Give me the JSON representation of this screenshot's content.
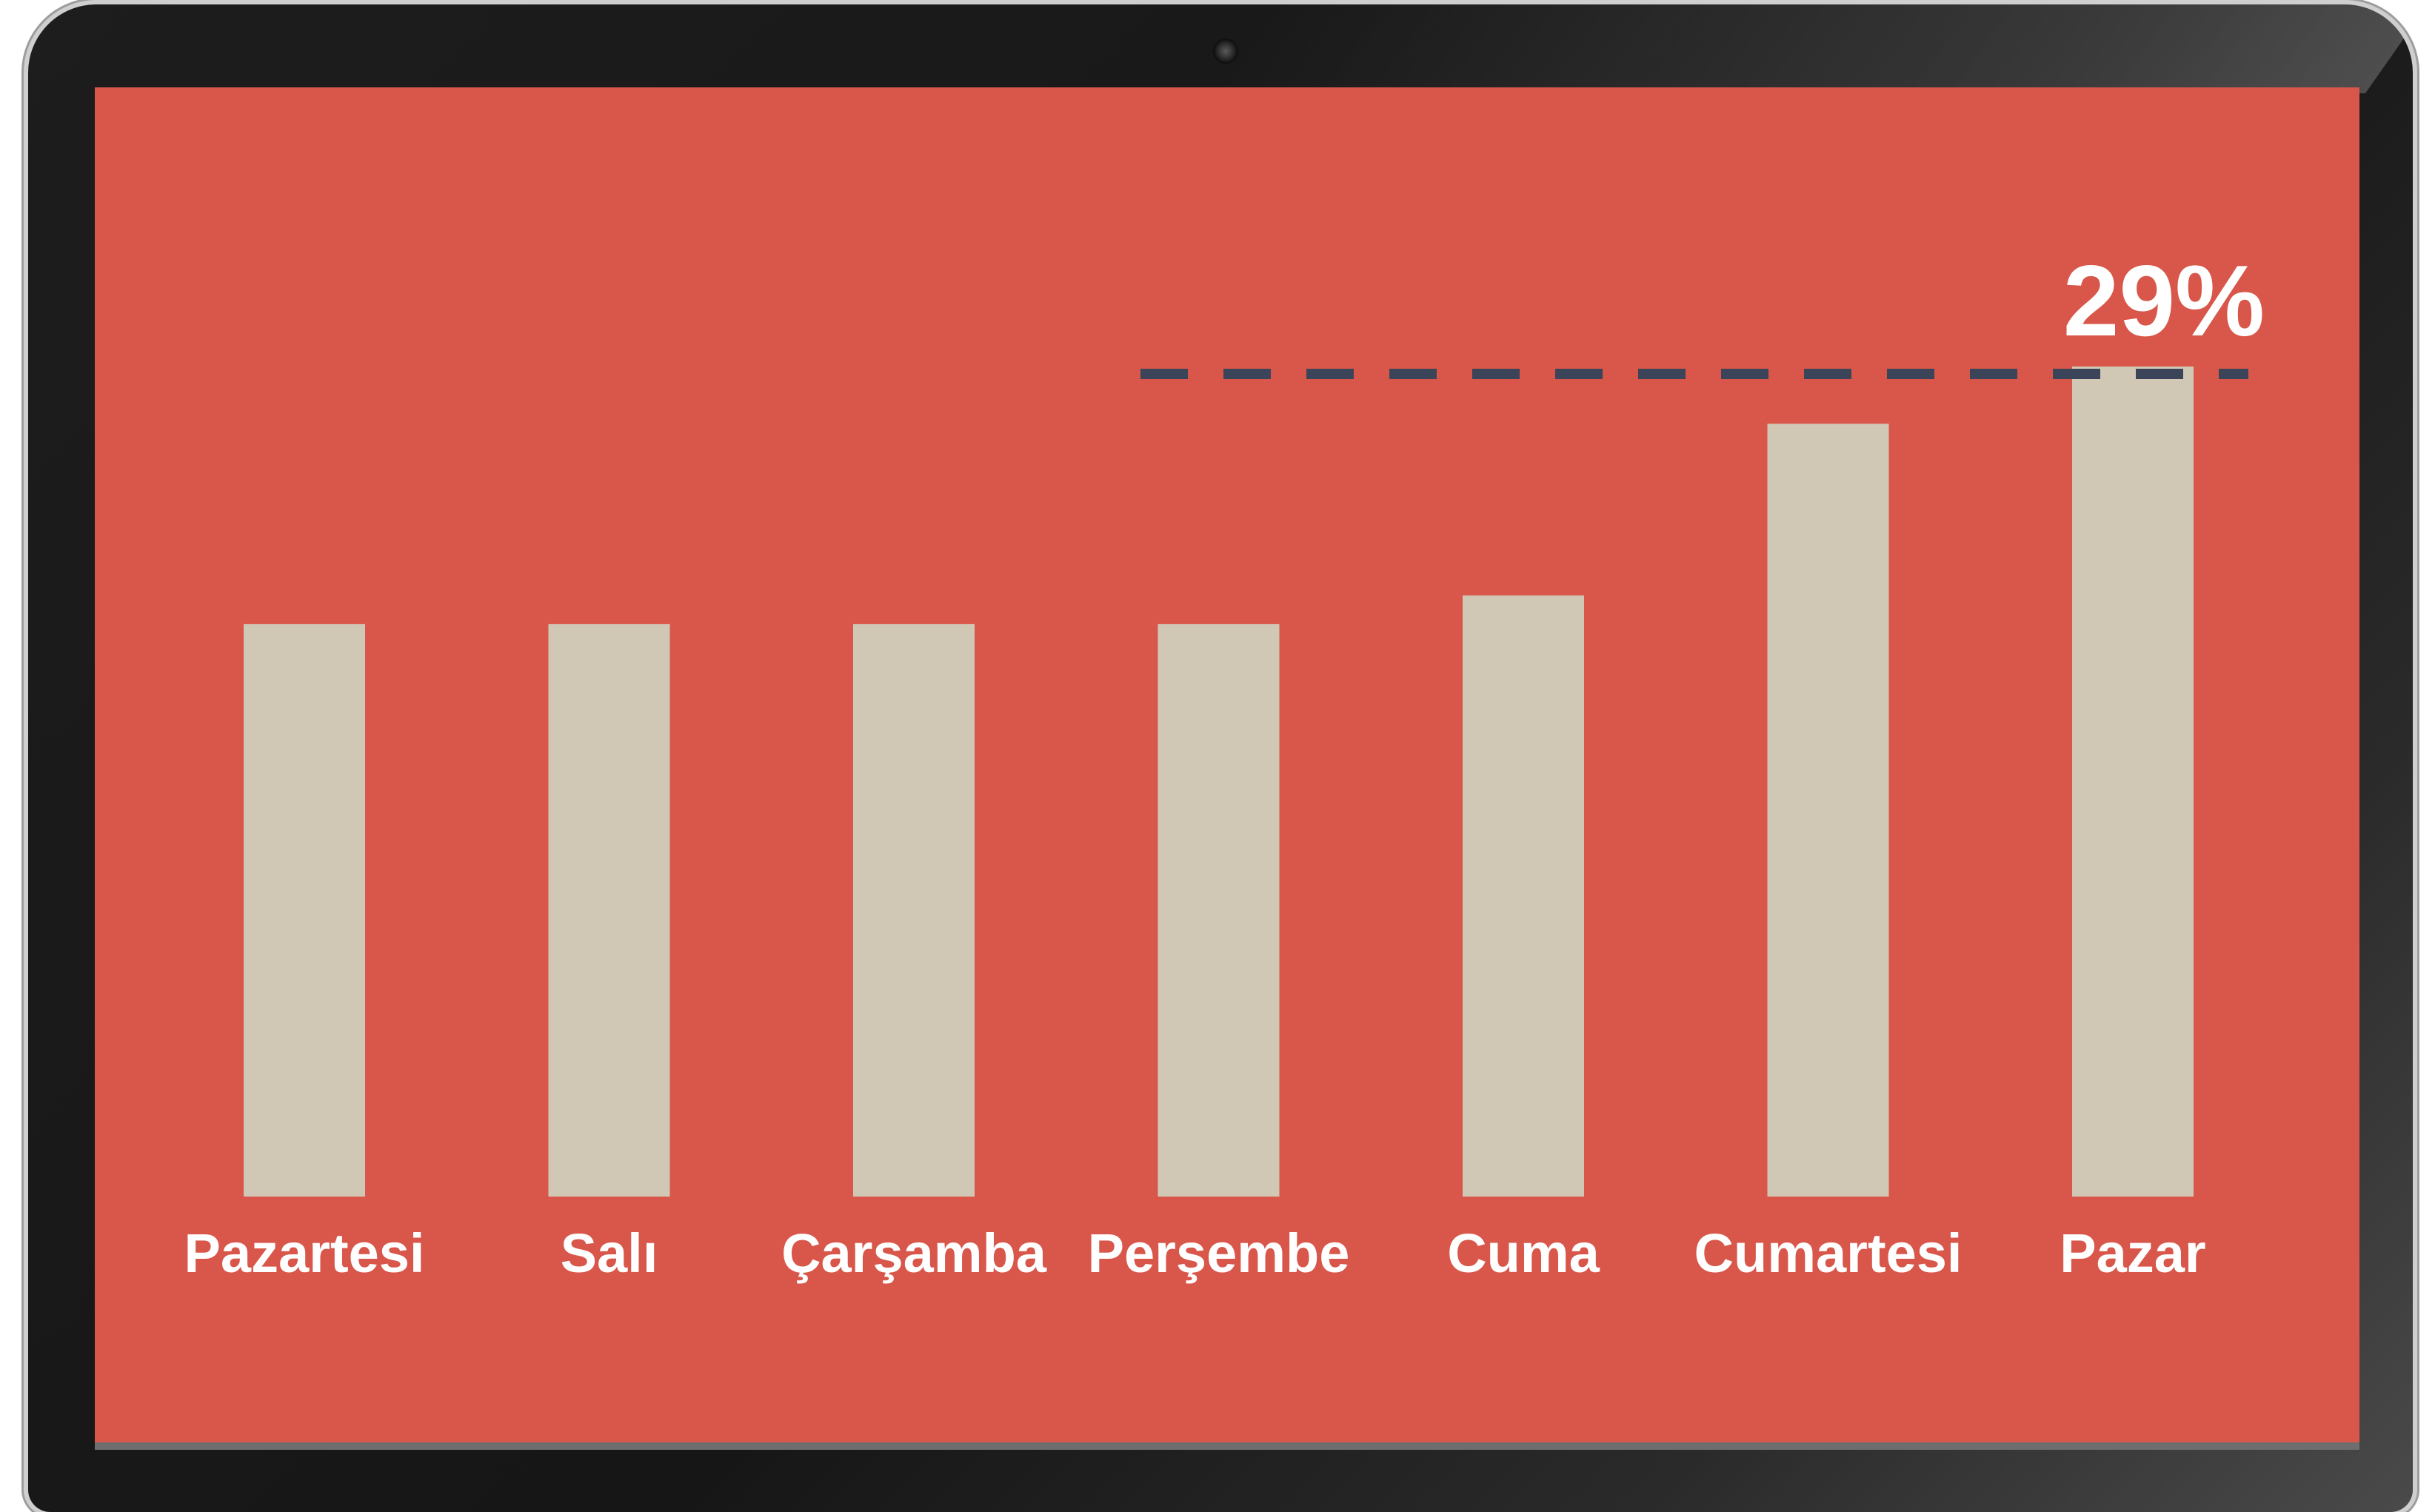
{
  "chart_data": {
    "type": "bar",
    "categories": [
      "Pazartesi",
      "Salı",
      "Çarşamba",
      "Perşembe",
      "Cuma",
      "Cumartesi",
      "Pazar"
    ],
    "values": [
      20,
      20,
      20,
      20,
      21,
      27,
      29
    ],
    "title": "",
    "xlabel": "",
    "ylabel": "",
    "ylim": [
      0,
      29
    ],
    "grid": false,
    "legend": "none",
    "annotation": {
      "label": "29%",
      "value": 29,
      "style": "dashed reference line"
    },
    "colors": {
      "background": "#d8574a",
      "bar": "#d1c7b5",
      "label": "#ffffff",
      "reference_line": "#3b4458"
    }
  }
}
